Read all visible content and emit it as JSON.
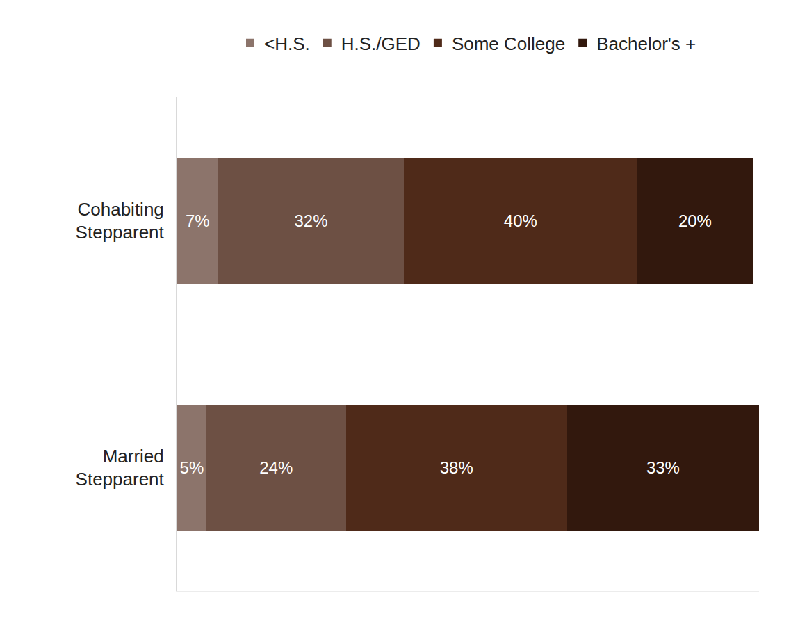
{
  "chart_data": {
    "type": "bar",
    "orientation": "horizontal",
    "stacked": true,
    "data_labels": true,
    "tick_labels": "y",
    "legend": "top",
    "grid": false,
    "categories": [
      "Cohabiting Stepparent",
      "Married Stepparent"
    ],
    "xlim": [
      0,
      100
    ],
    "series": [
      {
        "name": "<H.S.",
        "color": "#8c746b",
        "values": [
          7,
          5
        ],
        "value_labels": [
          "7%",
          "5%"
        ]
      },
      {
        "name": "H.S./GED",
        "color": "#6d5044",
        "values": [
          32,
          24
        ],
        "value_labels": [
          "32%",
          "24%"
        ]
      },
      {
        "name": "Some College",
        "color": "#4f2a19",
        "values": [
          40,
          38
        ],
        "value_labels": [
          "40%",
          "38%"
        ]
      },
      {
        "name": "Bachelor's +",
        "color": "#32180d",
        "values": [
          20,
          33
        ],
        "value_labels": [
          "20%",
          "33%"
        ]
      }
    ]
  }
}
